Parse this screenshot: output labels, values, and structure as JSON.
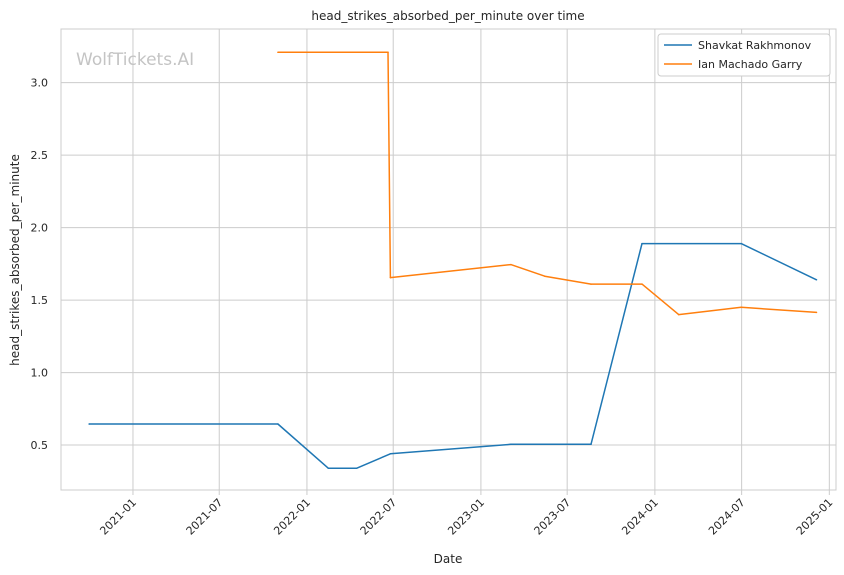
{
  "watermark": "WolfTickets.AI",
  "chart_data": {
    "type": "line",
    "title": "head_strikes_absorbed_per_minute over time",
    "xlabel": "Date",
    "ylabel": "head_strikes_absorbed_per_minute",
    "x_range": [
      "2020-08-03",
      "2025-01-15"
    ],
    "ylim": [
      0.19,
      3.37
    ],
    "x_ticks": [
      "2021-01",
      "2021-07",
      "2022-01",
      "2022-07",
      "2023-01",
      "2023-07",
      "2024-01",
      "2024-07",
      "2025-01"
    ],
    "y_ticks": [
      0.5,
      1.0,
      1.5,
      2.0,
      2.5,
      3.0
    ],
    "y_tick_labels": [
      "0.5",
      "1.0",
      "1.5",
      "2.0",
      "2.5",
      "3.0"
    ],
    "grid": true,
    "legend_position": "top-right",
    "series": [
      {
        "name": "Shavkat Rakhmonov",
        "color": "#1f77b4",
        "points": [
          {
            "x": "2020-10-01",
            "y": 0.645
          },
          {
            "x": "2021-11-01",
            "y": 0.645
          },
          {
            "x": "2022-02-15",
            "y": 0.34
          },
          {
            "x": "2022-04-15",
            "y": 0.34
          },
          {
            "x": "2022-06-25",
            "y": 0.44
          },
          {
            "x": "2023-03-05",
            "y": 0.505
          },
          {
            "x": "2023-08-20",
            "y": 0.505
          },
          {
            "x": "2023-12-05",
            "y": 1.89
          },
          {
            "x": "2024-06-30",
            "y": 1.89
          },
          {
            "x": "2024-12-05",
            "y": 1.64
          }
        ]
      },
      {
        "name": "Ian Machado Garry",
        "color": "#ff7f0e",
        "points": [
          {
            "x": "2021-11-01",
            "y": 3.21
          },
          {
            "x": "2022-06-20",
            "y": 3.21
          },
          {
            "x": "2022-06-25",
            "y": 1.655
          },
          {
            "x": "2023-03-05",
            "y": 1.745
          },
          {
            "x": "2023-05-15",
            "y": 1.665
          },
          {
            "x": "2023-08-20",
            "y": 1.61
          },
          {
            "x": "2023-12-05",
            "y": 1.61
          },
          {
            "x": "2024-02-20",
            "y": 1.4
          },
          {
            "x": "2024-06-30",
            "y": 1.45
          },
          {
            "x": "2024-12-05",
            "y": 1.415
          }
        ]
      }
    ]
  }
}
